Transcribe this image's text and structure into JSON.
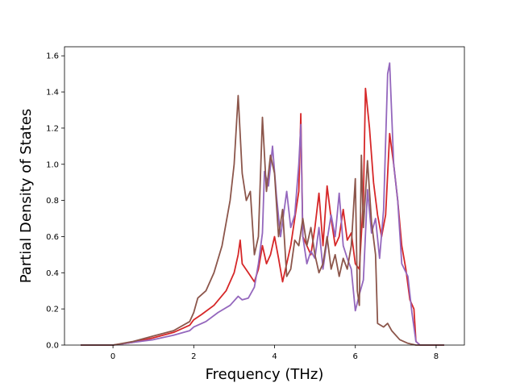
{
  "chart_data": {
    "type": "line",
    "title": "",
    "xlabel": "Frequency (THz)",
    "ylabel": "Partial Density of States",
    "xlim": [
      -1.2,
      8.7
    ],
    "ylim": [
      0,
      1.65
    ],
    "xticks": [
      0,
      2,
      4,
      6,
      8
    ],
    "xtick_labels": [
      "0",
      "2",
      "4",
      "6",
      "8"
    ],
    "yticks": [
      0.0,
      0.2,
      0.4,
      0.6,
      0.8,
      1.0,
      1.2,
      1.4,
      1.6
    ],
    "ytick_labels": [
      "0.0",
      "0.2",
      "0.4",
      "0.6",
      "0.8",
      "1.0",
      "1.2",
      "1.4",
      "1.6"
    ],
    "grid": false,
    "series": [
      {
        "color": "#d62728",
        "points": [
          [
            -0.8,
            0
          ],
          [
            0,
            0.0
          ],
          [
            0.5,
            0.015
          ],
          [
            1.0,
            0.04
          ],
          [
            1.5,
            0.07
          ],
          [
            1.9,
            0.11
          ],
          [
            2.0,
            0.14
          ],
          [
            2.2,
            0.17
          ],
          [
            2.5,
            0.22
          ],
          [
            2.8,
            0.3
          ],
          [
            3.0,
            0.4
          ],
          [
            3.1,
            0.5
          ],
          [
            3.15,
            0.58
          ],
          [
            3.2,
            0.45
          ],
          [
            3.35,
            0.4
          ],
          [
            3.5,
            0.35
          ],
          [
            3.6,
            0.42
          ],
          [
            3.7,
            0.55
          ],
          [
            3.8,
            0.45
          ],
          [
            3.9,
            0.5
          ],
          [
            4.0,
            0.6
          ],
          [
            4.1,
            0.48
          ],
          [
            4.2,
            0.35
          ],
          [
            4.3,
            0.45
          ],
          [
            4.4,
            0.55
          ],
          [
            4.5,
            0.7
          ],
          [
            4.6,
            0.85
          ],
          [
            4.65,
            1.28
          ],
          [
            4.7,
            0.6
          ],
          [
            4.8,
            0.55
          ],
          [
            4.9,
            0.5
          ],
          [
            5.0,
            0.65
          ],
          [
            5.1,
            0.84
          ],
          [
            5.2,
            0.55
          ],
          [
            5.3,
            0.88
          ],
          [
            5.4,
            0.7
          ],
          [
            5.5,
            0.55
          ],
          [
            5.6,
            0.6
          ],
          [
            5.7,
            0.75
          ],
          [
            5.8,
            0.58
          ],
          [
            5.9,
            0.62
          ],
          [
            6.0,
            0.45
          ],
          [
            6.1,
            0.42
          ],
          [
            6.2,
            0.8
          ],
          [
            6.25,
            1.42
          ],
          [
            6.35,
            1.2
          ],
          [
            6.45,
            0.9
          ],
          [
            6.55,
            0.72
          ],
          [
            6.65,
            0.6
          ],
          [
            6.75,
            0.72
          ],
          [
            6.85,
            1.17
          ],
          [
            6.95,
            1.0
          ],
          [
            7.05,
            0.8
          ],
          [
            7.15,
            0.55
          ],
          [
            7.25,
            0.42
          ],
          [
            7.35,
            0.25
          ],
          [
            7.45,
            0.2
          ],
          [
            7.5,
            0.02
          ],
          [
            7.6,
            0.0
          ],
          [
            8.2,
            0.0
          ]
        ]
      },
      {
        "color": "#9467bd",
        "points": [
          [
            -0.8,
            0
          ],
          [
            0,
            0.0
          ],
          [
            0.5,
            0.015
          ],
          [
            1.0,
            0.03
          ],
          [
            1.5,
            0.055
          ],
          [
            1.9,
            0.08
          ],
          [
            2.0,
            0.1
          ],
          [
            2.3,
            0.13
          ],
          [
            2.6,
            0.18
          ],
          [
            2.9,
            0.22
          ],
          [
            3.1,
            0.27
          ],
          [
            3.2,
            0.25
          ],
          [
            3.35,
            0.26
          ],
          [
            3.5,
            0.32
          ],
          [
            3.6,
            0.45
          ],
          [
            3.7,
            0.62
          ],
          [
            3.75,
            0.96
          ],
          [
            3.85,
            0.88
          ],
          [
            3.95,
            1.1
          ],
          [
            4.05,
            0.82
          ],
          [
            4.15,
            0.6
          ],
          [
            4.3,
            0.85
          ],
          [
            4.4,
            0.65
          ],
          [
            4.5,
            0.72
          ],
          [
            4.6,
            1.0
          ],
          [
            4.65,
            1.22
          ],
          [
            4.7,
            0.6
          ],
          [
            4.8,
            0.45
          ],
          [
            4.9,
            0.52
          ],
          [
            5.0,
            0.48
          ],
          [
            5.1,
            0.65
          ],
          [
            5.2,
            0.42
          ],
          [
            5.3,
            0.58
          ],
          [
            5.4,
            0.72
          ],
          [
            5.5,
            0.6
          ],
          [
            5.6,
            0.84
          ],
          [
            5.7,
            0.55
          ],
          [
            5.8,
            0.48
          ],
          [
            5.9,
            0.42
          ],
          [
            6.0,
            0.19
          ],
          [
            6.1,
            0.28
          ],
          [
            6.2,
            0.36
          ],
          [
            6.3,
            0.86
          ],
          [
            6.4,
            0.62
          ],
          [
            6.5,
            0.7
          ],
          [
            6.6,
            0.48
          ],
          [
            6.7,
            0.75
          ],
          [
            6.8,
            1.5
          ],
          [
            6.85,
            1.56
          ],
          [
            6.95,
            1.0
          ],
          [
            7.05,
            0.8
          ],
          [
            7.15,
            0.45
          ],
          [
            7.3,
            0.38
          ],
          [
            7.4,
            0.18
          ],
          [
            7.5,
            0.02
          ],
          [
            7.6,
            0.0
          ],
          [
            8.2,
            0.0
          ]
        ]
      },
      {
        "color": "#8c564b",
        "points": [
          [
            -0.8,
            0
          ],
          [
            0,
            0.0
          ],
          [
            0.5,
            0.02
          ],
          [
            1.0,
            0.05
          ],
          [
            1.5,
            0.08
          ],
          [
            1.9,
            0.13
          ],
          [
            2.0,
            0.18
          ],
          [
            2.1,
            0.26
          ],
          [
            2.3,
            0.3
          ],
          [
            2.5,
            0.4
          ],
          [
            2.7,
            0.55
          ],
          [
            2.9,
            0.8
          ],
          [
            3.0,
            1.0
          ],
          [
            3.1,
            1.38
          ],
          [
            3.2,
            0.95
          ],
          [
            3.3,
            0.8
          ],
          [
            3.4,
            0.85
          ],
          [
            3.5,
            0.5
          ],
          [
            3.6,
            0.6
          ],
          [
            3.7,
            1.26
          ],
          [
            3.8,
            0.85
          ],
          [
            3.9,
            1.05
          ],
          [
            4.0,
            0.95
          ],
          [
            4.1,
            0.6
          ],
          [
            4.2,
            0.75
          ],
          [
            4.3,
            0.38
          ],
          [
            4.4,
            0.42
          ],
          [
            4.5,
            0.58
          ],
          [
            4.6,
            0.55
          ],
          [
            4.7,
            0.7
          ],
          [
            4.8,
            0.55
          ],
          [
            4.9,
            0.65
          ],
          [
            5.0,
            0.5
          ],
          [
            5.1,
            0.4
          ],
          [
            5.2,
            0.45
          ],
          [
            5.3,
            0.6
          ],
          [
            5.4,
            0.42
          ],
          [
            5.5,
            0.5
          ],
          [
            5.6,
            0.38
          ],
          [
            5.7,
            0.48
          ],
          [
            5.8,
            0.42
          ],
          [
            5.9,
            0.55
          ],
          [
            6.0,
            0.92
          ],
          [
            6.05,
            0.3
          ],
          [
            6.1,
            0.22
          ],
          [
            6.15,
            1.05
          ],
          [
            6.2,
            0.65
          ],
          [
            6.3,
            1.02
          ],
          [
            6.4,
            0.68
          ],
          [
            6.5,
            0.5
          ],
          [
            6.55,
            0.12
          ],
          [
            6.7,
            0.1
          ],
          [
            6.8,
            0.12
          ],
          [
            6.9,
            0.08
          ],
          [
            7.1,
            0.03
          ],
          [
            7.3,
            0.01
          ],
          [
            7.5,
            0.0
          ],
          [
            8.2,
            0.0
          ]
        ]
      }
    ]
  }
}
